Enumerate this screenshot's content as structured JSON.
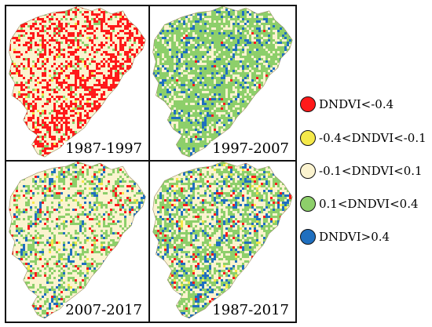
{
  "figure": {
    "panels": [
      {
        "id": "p1",
        "label": "1987-1997",
        "weights": {
          "red": 0.34,
          "yellow": 0.02,
          "cream": 0.56,
          "green": 0.08,
          "blue": 0.0
        }
      },
      {
        "id": "p2",
        "label": "1997-2007",
        "weights": {
          "red": 0.01,
          "yellow": 0.0,
          "cream": 0.22,
          "green": 0.65,
          "blue": 0.12
        }
      },
      {
        "id": "p3",
        "label": "2007-2017",
        "weights": {
          "red": 0.05,
          "yellow": 0.02,
          "cream": 0.6,
          "green": 0.29,
          "blue": 0.04
        }
      },
      {
        "id": "p4",
        "label": "1987-2017",
        "weights": {
          "red": 0.04,
          "yellow": 0.02,
          "cream": 0.42,
          "green": 0.42,
          "blue": 0.1
        }
      }
    ]
  },
  "legend": {
    "items": [
      {
        "key": "red",
        "label": "DNDVI<-0.4",
        "color": "#ff1a1a"
      },
      {
        "key": "yellow",
        "label": "-0.4<DNDVI<-0.1",
        "color": "#f5e94a"
      },
      {
        "key": "cream",
        "label": "-0.1<DNDVI<0.1",
        "color": "#fbf3cf"
      },
      {
        "key": "green",
        "label": "0.1<DNDVI<0.4",
        "color": "#8dcf6a"
      },
      {
        "key": "blue",
        "label": "DNDVI>0.4",
        "color": "#1f6fbf"
      }
    ]
  }
}
